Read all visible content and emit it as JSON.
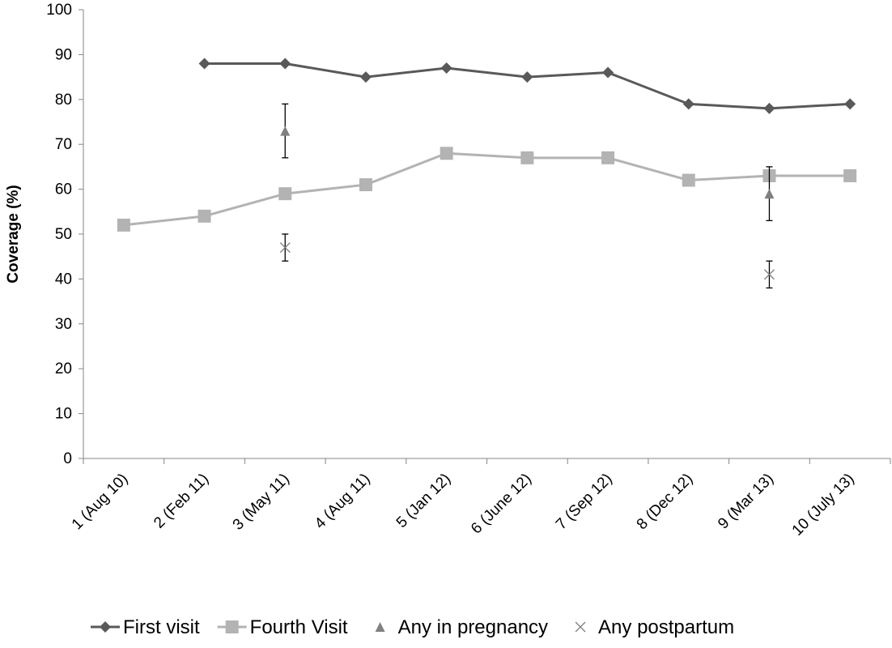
{
  "chart_data": {
    "type": "line",
    "title": "",
    "xlabel": "",
    "ylabel": "Coverage (%)",
    "ylim": [
      0,
      100
    ],
    "yticks": [
      "0",
      "10",
      "20",
      "30",
      "40",
      "50",
      "60",
      "70",
      "80",
      "90",
      "100"
    ],
    "categories": [
      "1 (Aug 10)",
      "2 (Feb 11)",
      "3 (May 11)",
      "4 (Aug 11)",
      "5 (Jan 12)",
      "6 (June 12)",
      "7 (Sep 12)",
      "8 (Dec 12)",
      "9 (Mar 13)",
      "10 (July 13)"
    ],
    "grid": false,
    "legend_position": "bottom",
    "series": [
      {
        "name": "First visit",
        "kind": "line",
        "marker": "diamond",
        "color": "#595959",
        "values": [
          null,
          88,
          88,
          85,
          87,
          85,
          86,
          79,
          78,
          79
        ]
      },
      {
        "name": "Fourth Visit",
        "kind": "line",
        "marker": "square",
        "color": "#b3b3b3",
        "values": [
          52,
          54,
          59,
          61,
          68,
          67,
          67,
          62,
          63,
          63
        ]
      },
      {
        "name": "Any in pregnancy",
        "kind": "scatter",
        "marker": "triangle",
        "color": "#808080",
        "values": [
          null,
          null,
          73,
          null,
          null,
          null,
          null,
          null,
          59,
          null
        ],
        "error_low": [
          null,
          null,
          67,
          null,
          null,
          null,
          null,
          null,
          53,
          null
        ],
        "error_high": [
          null,
          null,
          79,
          null,
          null,
          null,
          null,
          null,
          65,
          null
        ]
      },
      {
        "name": "Any postpartum",
        "kind": "scatter",
        "marker": "x",
        "color": "#808080",
        "values": [
          null,
          null,
          47,
          null,
          null,
          null,
          null,
          null,
          41,
          null
        ],
        "error_low": [
          null,
          null,
          44,
          null,
          null,
          null,
          null,
          null,
          38,
          null
        ],
        "error_high": [
          null,
          null,
          50,
          null,
          null,
          null,
          null,
          null,
          44,
          null
        ]
      }
    ]
  }
}
